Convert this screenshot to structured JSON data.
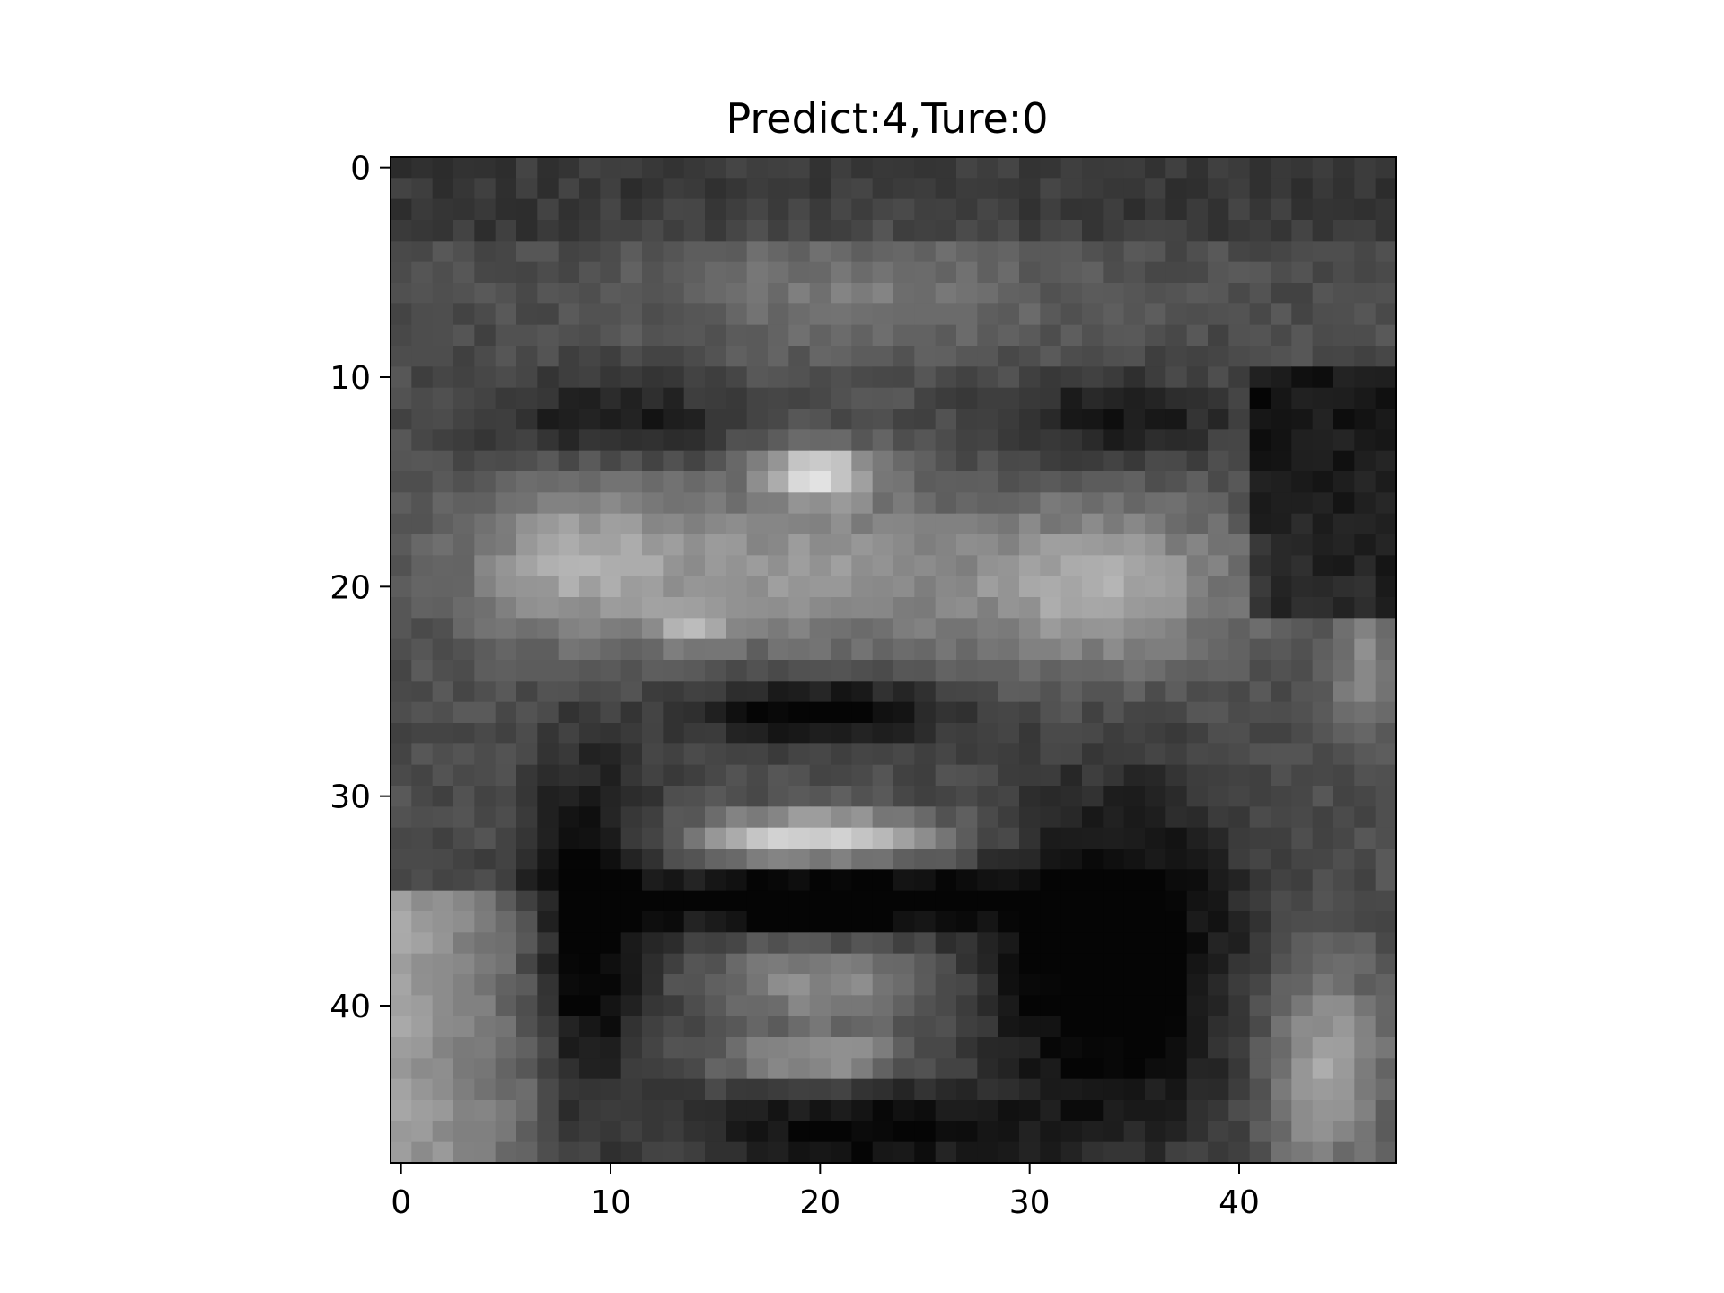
{
  "title": "Predict:4,Ture:0",
  "image": {
    "kind": "grayscale face image",
    "rows": 48,
    "cols": 48,
    "colormap": "gray"
  },
  "axes": {
    "x_ticks": [
      0,
      10,
      20,
      30,
      40
    ],
    "y_ticks": [
      0,
      10,
      20,
      30,
      40
    ],
    "x_range": [
      -0.5,
      47.5
    ],
    "y_range": [
      47.5,
      -0.5
    ]
  }
}
